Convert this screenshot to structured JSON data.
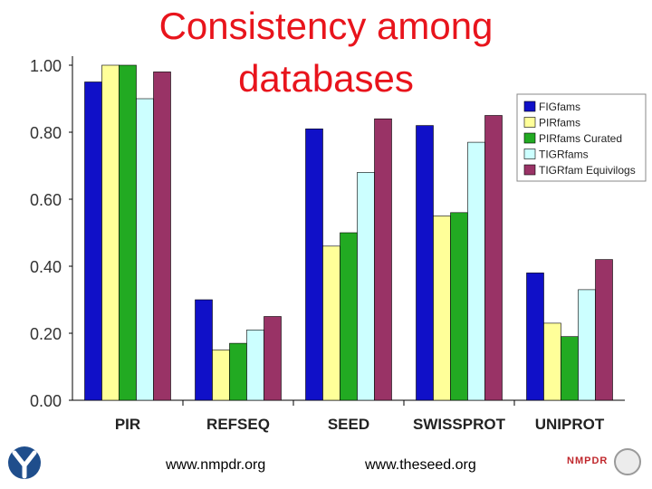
{
  "slide": {
    "title": "Consistency among databases",
    "footer_left": "www.nmpdr.org",
    "footer_right": "www.theseed.org",
    "logo_right_text": "NMPDR"
  },
  "colors": {
    "title": "#e8141c",
    "FIGfams": "#1010c8",
    "PIRfams": "#ffff99",
    "PIRfams Curated": "#22aa22",
    "TIGRfams": "#ccffff",
    "TIGRfam Equivilogs": "#993366"
  },
  "chart_data": {
    "type": "bar",
    "categories": [
      "PIR",
      "REFSEQ",
      "SEED",
      "SWISSPROT",
      "UNIPROT"
    ],
    "series": [
      {
        "name": "FIGfams",
        "values": [
          0.95,
          0.3,
          0.81,
          0.82,
          0.38
        ]
      },
      {
        "name": "PIRfams",
        "values": [
          1.0,
          0.15,
          0.46,
          0.55,
          0.23
        ]
      },
      {
        "name": "PIRfams Curated",
        "values": [
          1.0,
          0.17,
          0.5,
          0.56,
          0.19
        ]
      },
      {
        "name": "TIGRfams",
        "values": [
          0.9,
          0.21,
          0.68,
          0.77,
          0.33
        ]
      },
      {
        "name": "TIGRfam Equivilogs",
        "values": [
          0.98,
          0.25,
          0.84,
          0.85,
          0.42
        ]
      }
    ],
    "yticks": [
      "0.00",
      "0.20",
      "0.40",
      "0.60",
      "0.80",
      "1.00"
    ],
    "ylim": [
      0,
      1.0
    ],
    "legend_position": "top-right",
    "grid": false
  }
}
